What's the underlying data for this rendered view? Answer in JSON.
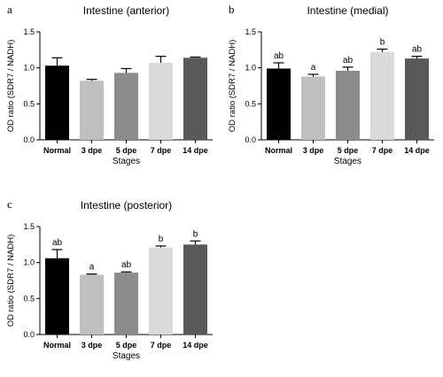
{
  "chart_data": [
    {
      "type": "bar",
      "panel": "a",
      "title": "Intestine (anterior)",
      "xlabel": "Stages",
      "ylabel": "OD ratio  (SDR7 / NADH)",
      "ylim": [
        0,
        1.5
      ],
      "yticks": [
        "0.0",
        "0.5",
        "1.0",
        "1.5"
      ],
      "categories": [
        "Normal",
        "3 dpe",
        "5 dpe",
        "7 dpe",
        "14 dpe"
      ],
      "values": [
        1.03,
        0.82,
        0.93,
        1.07,
        1.14
      ],
      "errors": [
        0.11,
        0.02,
        0.06,
        0.09,
        0.01
      ],
      "colors": [
        "#000000",
        "#bfbfbf",
        "#8c8c8c",
        "#dadada",
        "#595959"
      ],
      "significance": [
        "",
        "",
        "",
        "",
        ""
      ]
    },
    {
      "type": "bar",
      "panel": "b",
      "title": "Intestine (medial)",
      "xlabel": "Stages",
      "ylabel": "OD ratio  (SDR7 / NADH)",
      "ylim": [
        0,
        1.5
      ],
      "yticks": [
        "0.0",
        "0.5",
        "1.0",
        "1.5"
      ],
      "categories": [
        "Normal",
        "3 dpe",
        "5 dpe",
        "7 dpe",
        "14 dpe"
      ],
      "values": [
        0.99,
        0.88,
        0.96,
        1.22,
        1.13
      ],
      "errors": [
        0.08,
        0.03,
        0.05,
        0.04,
        0.03
      ],
      "colors": [
        "#000000",
        "#bfbfbf",
        "#8c8c8c",
        "#dadada",
        "#595959"
      ],
      "significance": [
        "ab",
        "a",
        "ab",
        "b",
        "ab"
      ]
    },
    {
      "type": "bar",
      "panel": "c",
      "title": "Intestine (posterior)",
      "xlabel": "Stages",
      "ylabel": "OD ratio  (SDR7 / NADH)",
      "ylim": [
        0,
        1.5
      ],
      "yticks": [
        "0.0",
        "0.5",
        "1.0",
        "1.5"
      ],
      "categories": [
        "Normal",
        "3 dpe",
        "5 dpe",
        "7 dpe",
        "14 dpe"
      ],
      "values": [
        1.06,
        0.83,
        0.86,
        1.21,
        1.25
      ],
      "errors": [
        0.12,
        0.01,
        0.01,
        0.02,
        0.05
      ],
      "colors": [
        "#000000",
        "#bfbfbf",
        "#8c8c8c",
        "#dadada",
        "#595959"
      ],
      "significance": [
        "ab",
        "a",
        "ab",
        "b",
        "b"
      ]
    }
  ]
}
